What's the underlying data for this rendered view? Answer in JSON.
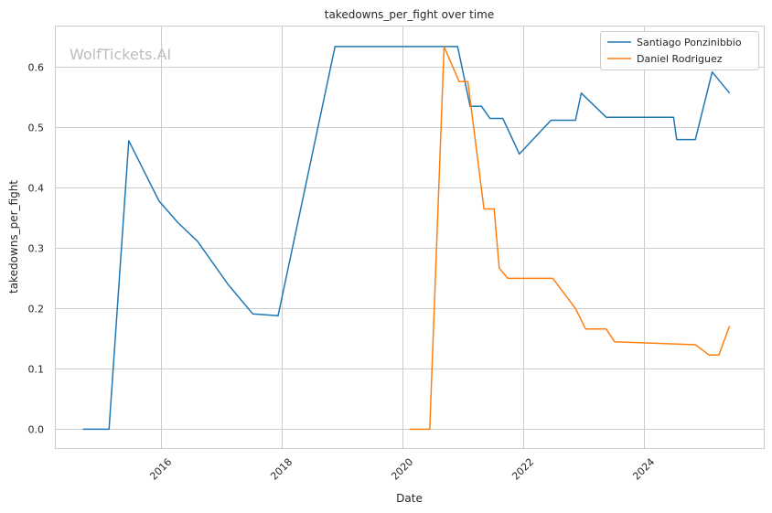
{
  "chart_data": {
    "type": "line",
    "title": "takedowns_per_fight over time",
    "xlabel": "Date",
    "ylabel": "takedowns_per_fight",
    "watermark": "WolfTickets.AI",
    "x_axis": "date",
    "xlim": [
      "2014-04-01",
      "2026-01-01"
    ],
    "ylim": [
      -0.032,
      0.668
    ],
    "xticks": [
      {
        "date": "2016-01-01",
        "label": "2016"
      },
      {
        "date": "2018-01-01",
        "label": "2018"
      },
      {
        "date": "2020-01-01",
        "label": "2020"
      },
      {
        "date": "2022-01-01",
        "label": "2022"
      },
      {
        "date": "2024-01-01",
        "label": "2024"
      }
    ],
    "yticks": [
      0.0,
      0.1,
      0.2,
      0.3,
      0.4,
      0.5,
      0.6
    ],
    "ytick_labels": [
      "0.0",
      "0.1",
      "0.2",
      "0.3",
      "0.4",
      "0.5",
      "0.6"
    ],
    "grid": true,
    "legend_position": "top-right",
    "series": [
      {
        "name": "Santiago Ponzinibbio",
        "color": "#1f77b4",
        "points": [
          [
            "2014-09-15",
            0.0
          ],
          [
            "2015-02-20",
            0.0
          ],
          [
            "2015-06-20",
            0.478
          ],
          [
            "2015-12-20",
            0.378
          ],
          [
            "2016-04-10",
            0.343
          ],
          [
            "2016-08-10",
            0.311
          ],
          [
            "2017-02-10",
            0.24
          ],
          [
            "2017-07-10",
            0.191
          ],
          [
            "2017-12-10",
            0.188
          ],
          [
            "2018-11-20",
            0.634
          ],
          [
            "2020-12-01",
            0.634
          ],
          [
            "2021-02-15",
            0.535
          ],
          [
            "2021-04-25",
            0.535
          ],
          [
            "2021-06-15",
            0.515
          ],
          [
            "2021-09-01",
            0.515
          ],
          [
            "2021-12-10",
            0.456
          ],
          [
            "2022-06-20",
            0.512
          ],
          [
            "2022-11-15",
            0.512
          ],
          [
            "2022-12-20",
            0.557
          ],
          [
            "2023-05-20",
            0.517
          ],
          [
            "2024-07-01",
            0.517
          ],
          [
            "2024-07-20",
            0.48
          ],
          [
            "2024-11-10",
            0.48
          ],
          [
            "2025-02-20",
            0.592
          ],
          [
            "2025-06-05",
            0.557
          ]
        ]
      },
      {
        "name": "Daniel Rodriguez",
        "color": "#ff7f0e",
        "points": [
          [
            "2020-02-15",
            0.0
          ],
          [
            "2020-06-15",
            0.0
          ],
          [
            "2020-09-10",
            0.634
          ],
          [
            "2020-12-10",
            0.576
          ],
          [
            "2021-02-01",
            0.576
          ],
          [
            "2021-05-10",
            0.365
          ],
          [
            "2021-07-10",
            0.365
          ],
          [
            "2021-08-10",
            0.267
          ],
          [
            "2021-10-01",
            0.25
          ],
          [
            "2022-07-01",
            0.25
          ],
          [
            "2022-11-15",
            0.2
          ],
          [
            "2023-01-15",
            0.166
          ],
          [
            "2023-05-20",
            0.166
          ],
          [
            "2023-07-10",
            0.145
          ],
          [
            "2024-11-10",
            0.14
          ],
          [
            "2025-02-01",
            0.123
          ],
          [
            "2025-04-01",
            0.123
          ],
          [
            "2025-06-05",
            0.171
          ]
        ]
      }
    ]
  }
}
